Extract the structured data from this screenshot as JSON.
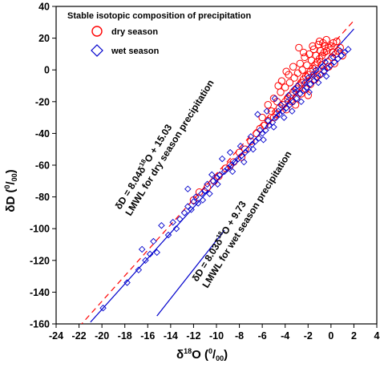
{
  "chart_data": {
    "type": "scatter",
    "title": "",
    "xlabel": "δ18O (‰)",
    "ylabel": "δD (‰)",
    "xlim": [
      -24,
      4
    ],
    "ylim": [
      -160,
      40
    ],
    "xticks": [
      -24,
      -22,
      -20,
      -18,
      -16,
      -14,
      -12,
      -10,
      -8,
      -6,
      -4,
      -2,
      0,
      2,
      4
    ],
    "yticks": [
      -160,
      -140,
      -120,
      -100,
      -80,
      -60,
      -40,
      -20,
      0,
      20,
      40
    ],
    "x_tick_labels": [
      "-24",
      "-22",
      "-20",
      "-18",
      "-16",
      "-14",
      "-12",
      "-10",
      "-8",
      "-6",
      "-4",
      "-2",
      "0",
      "2",
      "4"
    ],
    "y_tick_labels": [
      "-160",
      "-140",
      "-120",
      "-100",
      "-80",
      "-60",
      "-40",
      "-20",
      "0",
      "20",
      "40"
    ],
    "legend": {
      "title": "Stable isotopic composition of precipitation",
      "position": "top-left",
      "entries": [
        {
          "label": "dry season",
          "marker": "circle",
          "color": "#ff0000"
        },
        {
          "label": "wet season",
          "marker": "diamond",
          "color": "#0000cc"
        }
      ]
    },
    "series": [
      {
        "name": "dry season",
        "marker": "circle",
        "color": "#ff0000",
        "points": [
          [
            -12.0,
            -82
          ],
          [
            -11.5,
            -77
          ],
          [
            -9.8,
            -67
          ],
          [
            -9.2,
            -62
          ],
          [
            -8.5,
            -58
          ],
          [
            -7.8,
            -55
          ],
          [
            -6.5,
            -40
          ],
          [
            -6.2,
            -37
          ],
          [
            -5.8,
            -35
          ],
          [
            -5.5,
            -32
          ],
          [
            -5.0,
            -30
          ],
          [
            -4.8,
            -28
          ],
          [
            -4.5,
            -24
          ],
          [
            -4.2,
            -22
          ],
          [
            -4.0,
            -20
          ],
          [
            -3.8,
            -18
          ],
          [
            -3.5,
            -16
          ],
          [
            -3.3,
            -14
          ],
          [
            -3.0,
            -12
          ],
          [
            -2.8,
            -10
          ],
          [
            -2.6,
            -8
          ],
          [
            -2.4,
            -6
          ],
          [
            -2.2,
            -4
          ],
          [
            -2.0,
            -3
          ],
          [
            -1.8,
            -1
          ],
          [
            -1.6,
            1
          ],
          [
            -1.4,
            3
          ],
          [
            -1.2,
            5
          ],
          [
            -1.0,
            7
          ],
          [
            -0.8,
            9
          ],
          [
            -0.6,
            11
          ],
          [
            -0.4,
            12
          ],
          [
            -0.2,
            14
          ],
          [
            0.0,
            15
          ],
          [
            0.2,
            17
          ],
          [
            0.5,
            18
          ],
          [
            -3.6,
            -8
          ],
          [
            -3.2,
            -5
          ],
          [
            -2.9,
            -2
          ],
          [
            -2.5,
            0
          ],
          [
            -2.1,
            3
          ],
          [
            -1.7,
            6
          ],
          [
            -1.3,
            9
          ],
          [
            -0.9,
            12
          ],
          [
            -0.5,
            15
          ],
          [
            -2.7,
            4
          ],
          [
            -2.3,
            8
          ],
          [
            -1.9,
            10
          ],
          [
            -1.5,
            13
          ],
          [
            -1.1,
            16
          ],
          [
            -0.7,
            17
          ],
          [
            -0.3,
            5
          ],
          [
            0.1,
            8
          ],
          [
            0.4,
            10
          ],
          [
            -4.4,
            -14
          ],
          [
            -4.0,
            -11
          ],
          [
            -3.4,
            -20
          ],
          [
            -3.0,
            -18
          ],
          [
            -2.6,
            -15
          ],
          [
            -2.2,
            -12
          ],
          [
            -1.8,
            -9
          ],
          [
            -1.4,
            -6
          ],
          [
            -1.0,
            -3
          ],
          [
            -0.6,
            0
          ],
          [
            -0.2,
            2
          ],
          [
            0.3,
            4
          ],
          [
            -5.2,
            -26
          ],
          [
            -4.7,
            -20
          ],
          [
            -3.9,
            -25
          ],
          [
            -3.1,
            -22
          ],
          [
            -2.0,
            -16
          ],
          [
            -1.2,
            -4
          ],
          [
            -0.8,
            3
          ],
          [
            0.6,
            12
          ],
          [
            0.8,
            14
          ],
          [
            1.0,
            9
          ],
          [
            -1.6,
            15
          ],
          [
            -2.4,
            11
          ],
          [
            -3.7,
            -3
          ],
          [
            -4.3,
            -7
          ],
          [
            -5.5,
            -22
          ],
          [
            -6.0,
            -30
          ],
          [
            -7.0,
            -45
          ],
          [
            -7.5,
            -50
          ],
          [
            -8.0,
            -52
          ],
          [
            -8.8,
            -60
          ],
          [
            -10.2,
            -70
          ],
          [
            -10.8,
            -74
          ],
          [
            -1.0,
            18
          ],
          [
            -0.4,
            19
          ],
          [
            0.2,
            11
          ],
          [
            -2.8,
            14
          ],
          [
            -3.3,
            2
          ],
          [
            -3.9,
            -1
          ],
          [
            -4.6,
            -10
          ],
          [
            -5.0,
            -18
          ]
        ]
      },
      {
        "name": "wet season",
        "marker": "diamond",
        "color": "#0000cc",
        "points": [
          [
            -19.9,
            -150
          ],
          [
            -17.8,
            -134
          ],
          [
            -16.8,
            -126
          ],
          [
            -16.2,
            -120
          ],
          [
            -15.8,
            -116
          ],
          [
            -15.2,
            -115
          ],
          [
            -16.5,
            -113
          ],
          [
            -15.5,
            -108
          ],
          [
            -14.2,
            -104
          ],
          [
            -13.8,
            -96
          ],
          [
            -13.2,
            -94
          ],
          [
            -12.8,
            -90
          ],
          [
            -12.5,
            -86
          ],
          [
            -12.0,
            -83
          ],
          [
            -11.8,
            -80
          ],
          [
            -11.3,
            -78
          ],
          [
            -11.0,
            -76
          ],
          [
            -12.5,
            -75
          ],
          [
            -10.8,
            -72
          ],
          [
            -10.3,
            -70
          ],
          [
            -10.0,
            -68
          ],
          [
            -9.7,
            -66
          ],
          [
            -9.3,
            -64
          ],
          [
            -9.0,
            -62
          ],
          [
            -8.7,
            -60
          ],
          [
            -8.4,
            -58
          ],
          [
            -8.1,
            -56
          ],
          [
            -7.8,
            -54
          ],
          [
            -7.5,
            -52
          ],
          [
            -7.2,
            -50
          ],
          [
            -6.9,
            -47
          ],
          [
            -6.6,
            -45
          ],
          [
            -6.3,
            -43
          ],
          [
            -6.0,
            -40
          ],
          [
            -5.7,
            -38
          ],
          [
            -5.4,
            -35
          ],
          [
            -5.1,
            -33
          ],
          [
            -4.8,
            -30
          ],
          [
            -4.5,
            -28
          ],
          [
            -4.2,
            -26
          ],
          [
            -3.9,
            -24
          ],
          [
            -3.6,
            -22
          ],
          [
            -3.3,
            -20
          ],
          [
            -3.0,
            -18
          ],
          [
            -2.7,
            -15
          ],
          [
            -2.4,
            -13
          ],
          [
            -2.1,
            -11
          ],
          [
            -1.8,
            -9
          ],
          [
            -1.5,
            -7
          ],
          [
            -1.2,
            -5
          ],
          [
            -0.9,
            -3
          ],
          [
            -0.6,
            -1
          ],
          [
            -0.3,
            1
          ],
          [
            0.0,
            3
          ],
          [
            0.3,
            5
          ],
          [
            0.6,
            7
          ],
          [
            0.9,
            9
          ],
          [
            1.2,
            11
          ],
          [
            1.5,
            13
          ],
          [
            -9.5,
            -56
          ],
          [
            -8.8,
            -52
          ],
          [
            -7.9,
            -48
          ],
          [
            -7.0,
            -42
          ],
          [
            -6.2,
            -38
          ],
          [
            -5.5,
            -32
          ],
          [
            -4.6,
            -26
          ],
          [
            -3.8,
            -20
          ],
          [
            -3.1,
            -14
          ],
          [
            -2.3,
            -8
          ],
          [
            -1.6,
            -3
          ],
          [
            -0.8,
            2
          ],
          [
            -12.2,
            -88
          ],
          [
            -11.6,
            -84
          ],
          [
            -10.6,
            -78
          ],
          [
            -9.9,
            -72
          ],
          [
            -13.5,
            -100
          ],
          [
            -14.8,
            -98
          ],
          [
            -11.2,
            -82
          ],
          [
            -10.4,
            -66
          ],
          [
            -8.6,
            -64
          ],
          [
            -7.6,
            -58
          ],
          [
            -6.8,
            -50
          ],
          [
            -5.9,
            -44
          ],
          [
            -5.0,
            -36
          ],
          [
            -4.1,
            -30
          ],
          [
            -3.4,
            -26
          ],
          [
            -2.6,
            -20
          ],
          [
            -1.9,
            -14
          ],
          [
            -1.1,
            -8
          ],
          [
            -0.4,
            -4
          ],
          [
            -4.4,
            -22
          ],
          [
            -3.7,
            -16
          ],
          [
            -2.9,
            -10
          ],
          [
            -2.0,
            -5
          ],
          [
            -1.3,
            0
          ],
          [
            -0.5,
            5
          ],
          [
            0.2,
            8
          ],
          [
            0.8,
            12
          ],
          [
            -6.4,
            -28
          ],
          [
            -5.6,
            -26
          ],
          [
            -4.9,
            -18
          ],
          [
            -3.2,
            -12
          ]
        ]
      }
    ],
    "lines": [
      {
        "name": "dry-lmwl",
        "style": "dashed",
        "color": "#ff0000",
        "slope": 8.04,
        "intercept": 15.03,
        "x_range": [
          -22.0,
          2.0
        ]
      },
      {
        "name": "wet-lmwl",
        "style": "solid",
        "color": "#0000cc",
        "slope": 8.03,
        "intercept": 9.73,
        "x_range": [
          -21.0,
          2.0
        ]
      },
      {
        "name": "wet-lmwl-offset",
        "style": "solid",
        "color": "#0000cc",
        "points": [
          [
            -15.2,
            -155
          ],
          [
            -9.3,
            -101
          ]
        ]
      }
    ],
    "annotations": {
      "dry_equation": "δD = 8.04δ18O + 15.03",
      "dry_label": "LMWL for dry season precipitation",
      "wet_equation": "δD = 8.03δ18O + 9.73",
      "wet_label": "LMWL for wet season precipitation"
    }
  }
}
